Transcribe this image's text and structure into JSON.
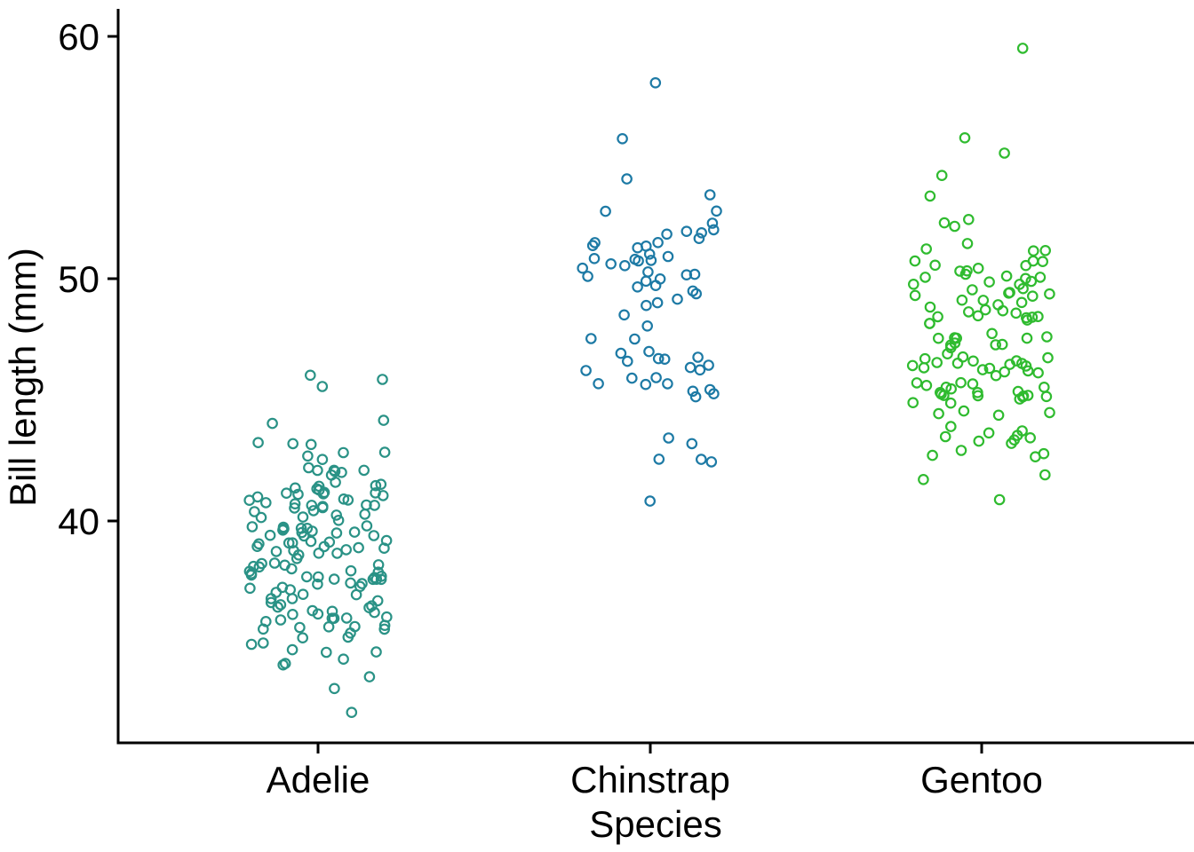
{
  "chart_data": {
    "type": "scatter",
    "variant": "jitter-strip",
    "title": "",
    "xlabel": "Species",
    "ylabel": "Bill length (mm)",
    "categories": [
      "Adelie",
      "Chinstrap",
      "Gentoo"
    ],
    "ytick_labels": [
      "60",
      "50",
      "40"
    ],
    "yticks": [
      60,
      50,
      40
    ],
    "ylim": [
      30.9,
      61.1
    ],
    "grid": false,
    "legend": "none",
    "background": "#ffffff",
    "axis_color": "#000000",
    "marker": {
      "shape": "open-circle",
      "radius_px": 5.2,
      "stroke_px": 2.2
    },
    "colors": {
      "Adelie": "#2a9286",
      "Chinstrap": "#1d7aa5",
      "Gentoo": "#2fbb2f"
    },
    "series": [
      {
        "name": "Adelie",
        "color": "#2a9286",
        "values": [
          39.1,
          39.5,
          40.3,
          36.7,
          39.3,
          38.9,
          39.2,
          34.1,
          42.0,
          37.8,
          37.8,
          41.1,
          38.6,
          34.6,
          36.6,
          38.7,
          42.5,
          34.4,
          46.0,
          37.8,
          37.7,
          35.9,
          38.2,
          38.8,
          35.3,
          40.6,
          40.5,
          37.9,
          40.5,
          39.5,
          37.2,
          39.5,
          40.9,
          36.4,
          39.2,
          38.8,
          42.2,
          37.6,
          39.8,
          36.5,
          40.8,
          36.0,
          44.1,
          37.0,
          39.6,
          41.1,
          37.5,
          36.0,
          42.3,
          39.6,
          40.1,
          35.0,
          42.0,
          34.5,
          41.4,
          39.0,
          40.6,
          36.5,
          37.6,
          35.7,
          41.3,
          37.6,
          41.1,
          36.4,
          41.6,
          35.5,
          41.1,
          35.9,
          41.8,
          33.5,
          39.7,
          39.6,
          45.8,
          35.5,
          42.8,
          40.9,
          37.2,
          36.2,
          42.1,
          34.6,
          42.9,
          36.7,
          35.1,
          37.3,
          41.3,
          36.3,
          36.9,
          38.3,
          38.9,
          35.7,
          41.1,
          34.0,
          39.6,
          36.2,
          40.8,
          38.1,
          40.3,
          33.1,
          43.2,
          35.0,
          41.0,
          37.7,
          37.8,
          37.9,
          39.7,
          38.6,
          38.2,
          38.1,
          43.2,
          38.1,
          45.6,
          39.7,
          42.2,
          39.6,
          42.7,
          38.6,
          37.3,
          35.7,
          41.1,
          36.2,
          37.7,
          40.2,
          41.4,
          35.2,
          40.6,
          38.8,
          41.5,
          39.0,
          44.1,
          38.5,
          43.1,
          36.8,
          37.5,
          38.1,
          41.1,
          35.6,
          40.2,
          37.0,
          39.7,
          40.2,
          40.6,
          32.1,
          40.7,
          37.3,
          39.0,
          39.2,
          36.6,
          36.0,
          37.8,
          36.0,
          41.5
        ]
      },
      {
        "name": "Chinstrap",
        "color": "#1d7aa5",
        "values": [
          46.5,
          50.0,
          51.3,
          45.4,
          52.7,
          45.2,
          46.1,
          51.3,
          46.0,
          51.3,
          46.6,
          51.7,
          47.0,
          52.0,
          45.9,
          50.5,
          50.3,
          58.0,
          46.4,
          49.2,
          42.4,
          48.5,
          43.2,
          50.6,
          46.7,
          52.0,
          50.5,
          49.5,
          46.4,
          52.8,
          40.9,
          54.2,
          42.5,
          51.0,
          49.7,
          47.5,
          47.6,
          52.0,
          46.9,
          53.5,
          49.0,
          46.2,
          50.9,
          45.5,
          50.9,
          50.8,
          50.1,
          49.0,
          51.5,
          49.8,
          48.1,
          51.4,
          45.7,
          50.7,
          42.5,
          52.2,
          45.2,
          49.3,
          50.2,
          45.6,
          51.9,
          46.8,
          45.7,
          55.8,
          43.5,
          49.6,
          50.8,
          50.2
        ]
      },
      {
        "name": "Gentoo",
        "color": "#2fbb2f",
        "values": [
          46.1,
          50.0,
          48.7,
          50.0,
          47.6,
          46.5,
          45.4,
          46.7,
          43.3,
          46.8,
          40.9,
          49.0,
          45.5,
          48.4,
          45.8,
          49.3,
          42.0,
          49.2,
          46.2,
          48.7,
          50.2,
          45.1,
          46.5,
          46.3,
          42.9,
          46.1,
          44.5,
          47.8,
          48.2,
          50.0,
          47.3,
          42.8,
          45.1,
          59.6,
          49.1,
          48.4,
          42.6,
          44.4,
          44.0,
          48.7,
          42.7,
          49.6,
          45.3,
          49.6,
          50.5,
          43.6,
          45.5,
          50.5,
          44.9,
          45.2,
          46.6,
          48.5,
          45.1,
          50.1,
          46.5,
          45.0,
          43.8,
          45.5,
          43.2,
          50.4,
          45.3,
          46.2,
          45.7,
          54.3,
          45.8,
          49.8,
          46.2,
          49.5,
          43.5,
          50.7,
          47.7,
          46.4,
          48.2,
          46.5,
          46.4,
          48.6,
          47.5,
          51.1,
          45.2,
          45.2,
          49.1,
          52.5,
          47.4,
          50.0,
          44.9,
          50.8,
          43.4,
          51.3,
          47.5,
          52.1,
          47.5,
          52.2,
          45.5,
          49.5,
          44.5,
          50.8,
          49.4,
          46.9,
          48.4,
          51.1,
          48.5,
          55.9,
          47.2,
          49.1,
          47.3,
          46.8,
          41.7,
          53.4,
          43.3,
          48.1,
          50.5,
          49.8,
          43.5,
          51.5,
          46.2,
          55.1,
          44.5,
          48.8,
          47.2,
          46.8,
          50.4,
          45.2,
          49.9
        ]
      }
    ]
  }
}
